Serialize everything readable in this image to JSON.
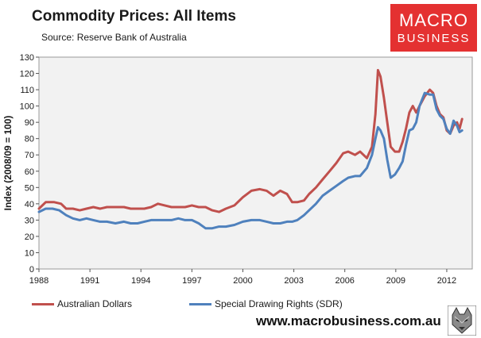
{
  "header": {
    "title": "Commodity  Prices: All Items",
    "source": "Source:  Reserve Bank of Australia"
  },
  "logo": {
    "line1": "MACRO",
    "line2": "BUSINESS",
    "color": "#e43131"
  },
  "footer": {
    "website": "www.macrobusiness.com.au"
  },
  "chart_data": {
    "type": "line",
    "title": "Commodity  Prices: All Items",
    "ylabel": "Index (2008/09  = 100)",
    "xlabel": "",
    "xlim": [
      1988,
      2013.5
    ],
    "ylim": [
      0,
      130
    ],
    "yticks": [
      0,
      10,
      20,
      30,
      40,
      50,
      60,
      70,
      80,
      90,
      100,
      110,
      120,
      130
    ],
    "xticks": [
      1988,
      1991,
      1994,
      1997,
      2000,
      2003,
      2006,
      2009,
      2012
    ],
    "xtick_labels": [
      "1988",
      "1991",
      "1994",
      "1997",
      "2000",
      "2003",
      "2006",
      "2009",
      "2012"
    ],
    "grid": false,
    "plot_background": "#f2f2f2",
    "legend_position": "bottom",
    "series": [
      {
        "name": "Australian Dollars",
        "color": "#c0504d",
        "points": [
          [
            1988.0,
            37
          ],
          [
            1988.4,
            41
          ],
          [
            1988.9,
            41
          ],
          [
            1989.3,
            40
          ],
          [
            1989.6,
            37
          ],
          [
            1990.0,
            37
          ],
          [
            1990.4,
            36
          ],
          [
            1990.8,
            37
          ],
          [
            1991.2,
            38
          ],
          [
            1991.6,
            37
          ],
          [
            1992.0,
            38
          ],
          [
            1992.5,
            38
          ],
          [
            1993.0,
            38
          ],
          [
            1993.4,
            37
          ],
          [
            1993.8,
            37
          ],
          [
            1994.2,
            37
          ],
          [
            1994.6,
            38
          ],
          [
            1995.0,
            40
          ],
          [
            1995.4,
            39
          ],
          [
            1995.8,
            38
          ],
          [
            1996.2,
            38
          ],
          [
            1996.6,
            38
          ],
          [
            1997.0,
            39
          ],
          [
            1997.4,
            38
          ],
          [
            1997.8,
            38
          ],
          [
            1998.2,
            36
          ],
          [
            1998.6,
            35
          ],
          [
            1999.0,
            37
          ],
          [
            1999.5,
            39
          ],
          [
            2000.0,
            44
          ],
          [
            2000.5,
            48
          ],
          [
            2001.0,
            49
          ],
          [
            2001.4,
            48
          ],
          [
            2001.8,
            45
          ],
          [
            2002.2,
            48
          ],
          [
            2002.6,
            46
          ],
          [
            2002.9,
            41
          ],
          [
            2003.2,
            41
          ],
          [
            2003.6,
            42
          ],
          [
            2003.9,
            46
          ],
          [
            2004.3,
            50
          ],
          [
            2004.7,
            55
          ],
          [
            2005.1,
            60
          ],
          [
            2005.5,
            65
          ],
          [
            2005.9,
            71
          ],
          [
            2006.2,
            72
          ],
          [
            2006.6,
            70
          ],
          [
            2006.9,
            72
          ],
          [
            2007.3,
            68
          ],
          [
            2007.6,
            75
          ],
          [
            2007.8,
            95
          ],
          [
            2007.95,
            122
          ],
          [
            2008.1,
            118
          ],
          [
            2008.3,
            105
          ],
          [
            2008.5,
            90
          ],
          [
            2008.7,
            75
          ],
          [
            2008.95,
            72
          ],
          [
            2009.2,
            72
          ],
          [
            2009.4,
            78
          ],
          [
            2009.6,
            86
          ],
          [
            2009.8,
            96
          ],
          [
            2010.0,
            100
          ],
          [
            2010.2,
            96
          ],
          [
            2010.4,
            100
          ],
          [
            2010.7,
            106
          ],
          [
            2011.0,
            110
          ],
          [
            2011.2,
            108
          ],
          [
            2011.4,
            100
          ],
          [
            2011.6,
            95
          ],
          [
            2011.8,
            93
          ],
          [
            2012.0,
            85
          ],
          [
            2012.2,
            83
          ],
          [
            2012.4,
            88
          ],
          [
            2012.6,
            90
          ],
          [
            2012.75,
            86
          ],
          [
            2012.9,
            92
          ]
        ]
      },
      {
        "name": "Special Drawing Rights (SDR)",
        "color": "#4f81bd",
        "points": [
          [
            1988.0,
            35
          ],
          [
            1988.4,
            37
          ],
          [
            1988.8,
            37
          ],
          [
            1989.2,
            36
          ],
          [
            1989.6,
            33
          ],
          [
            1990.0,
            31
          ],
          [
            1990.4,
            30
          ],
          [
            1990.8,
            31
          ],
          [
            1991.2,
            30
          ],
          [
            1991.6,
            29
          ],
          [
            1992.0,
            29
          ],
          [
            1992.5,
            28
          ],
          [
            1993.0,
            29
          ],
          [
            1993.4,
            28
          ],
          [
            1993.8,
            28
          ],
          [
            1994.2,
            29
          ],
          [
            1994.6,
            30
          ],
          [
            1995.0,
            30
          ],
          [
            1995.4,
            30
          ],
          [
            1995.8,
            30
          ],
          [
            1996.2,
            31
          ],
          [
            1996.6,
            30
          ],
          [
            1997.0,
            30
          ],
          [
            1997.4,
            28
          ],
          [
            1997.8,
            25
          ],
          [
            1998.2,
            25
          ],
          [
            1998.6,
            26
          ],
          [
            1999.0,
            26
          ],
          [
            1999.5,
            27
          ],
          [
            2000.0,
            29
          ],
          [
            2000.5,
            30
          ],
          [
            2001.0,
            30
          ],
          [
            2001.4,
            29
          ],
          [
            2001.8,
            28
          ],
          [
            2002.2,
            28
          ],
          [
            2002.6,
            29
          ],
          [
            2002.9,
            29
          ],
          [
            2003.2,
            30
          ],
          [
            2003.6,
            33
          ],
          [
            2003.9,
            36
          ],
          [
            2004.3,
            40
          ],
          [
            2004.7,
            45
          ],
          [
            2005.1,
            48
          ],
          [
            2005.5,
            51
          ],
          [
            2005.9,
            54
          ],
          [
            2006.2,
            56
          ],
          [
            2006.6,
            57
          ],
          [
            2006.9,
            57
          ],
          [
            2007.3,
            62
          ],
          [
            2007.6,
            70
          ],
          [
            2007.8,
            80
          ],
          [
            2007.95,
            87
          ],
          [
            2008.1,
            85
          ],
          [
            2008.3,
            80
          ],
          [
            2008.5,
            67
          ],
          [
            2008.7,
            56
          ],
          [
            2008.95,
            58
          ],
          [
            2009.2,
            62
          ],
          [
            2009.4,
            66
          ],
          [
            2009.6,
            76
          ],
          [
            2009.8,
            85
          ],
          [
            2010.0,
            86
          ],
          [
            2010.2,
            90
          ],
          [
            2010.4,
            100
          ],
          [
            2010.7,
            108
          ],
          [
            2011.0,
            107
          ],
          [
            2011.2,
            107
          ],
          [
            2011.4,
            98
          ],
          [
            2011.6,
            94
          ],
          [
            2011.8,
            92
          ],
          [
            2012.0,
            86
          ],
          [
            2012.2,
            83
          ],
          [
            2012.4,
            91
          ],
          [
            2012.6,
            88
          ],
          [
            2012.75,
            84
          ],
          [
            2012.9,
            85
          ]
        ]
      }
    ]
  }
}
